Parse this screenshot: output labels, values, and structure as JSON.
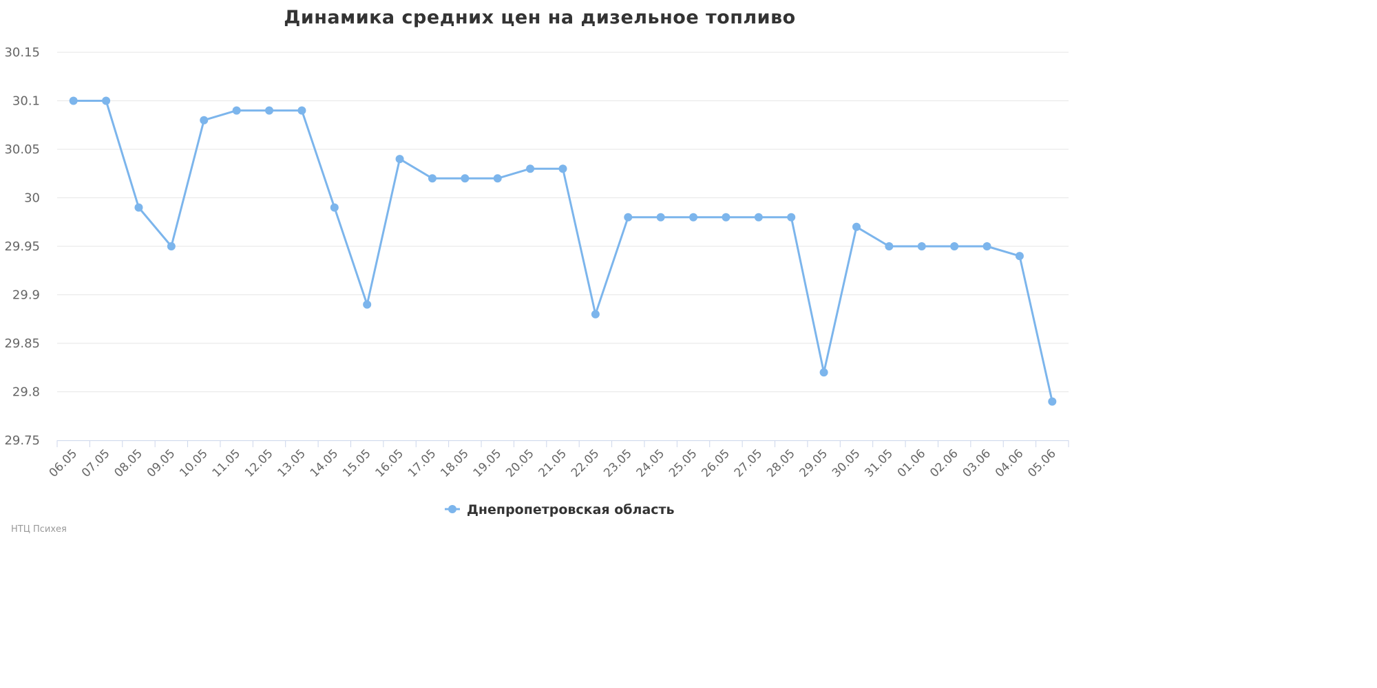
{
  "chart_data": {
    "type": "line",
    "title": "Динамика средних цен на дизельное топливо",
    "xlabel": "",
    "ylabel": "",
    "categories": [
      "06.05",
      "07.05",
      "08.05",
      "09.05",
      "10.05",
      "11.05",
      "12.05",
      "13.05",
      "14.05",
      "15.05",
      "16.05",
      "17.05",
      "18.05",
      "19.05",
      "20.05",
      "21.05",
      "22.05",
      "23.05",
      "24.05",
      "25.05",
      "26.05",
      "27.05",
      "28.05",
      "29.05",
      "30.05",
      "31.05",
      "01.06",
      "02.06",
      "03.06",
      "04.06",
      "05.06"
    ],
    "y_ticks": [
      "29.75",
      "29.8",
      "29.85",
      "29.9",
      "29.95",
      "30",
      "30.05",
      "30.1",
      "30.15"
    ],
    "ylim": [
      29.75,
      30.15
    ],
    "grid": true,
    "legend_position": "bottom-center",
    "series": [
      {
        "name": "Днепропетровская область",
        "color": "#7cb5ec",
        "values": [
          30.1,
          30.1,
          29.99,
          29.95,
          30.08,
          30.09,
          30.09,
          30.09,
          29.99,
          29.89,
          30.04,
          30.02,
          30.02,
          30.02,
          30.03,
          30.03,
          29.88,
          29.98,
          29.98,
          29.98,
          29.98,
          29.98,
          29.98,
          29.82,
          29.97,
          29.95,
          29.95,
          29.95,
          29.95,
          29.94,
          29.79
        ]
      }
    ]
  },
  "credits": "НТЦ Психея"
}
